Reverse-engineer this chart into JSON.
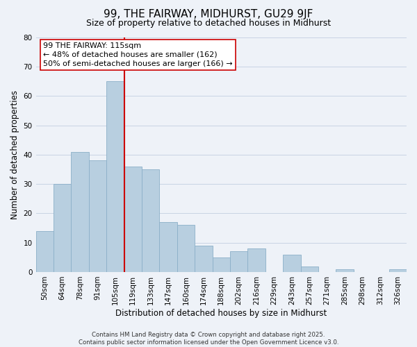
{
  "title": "99, THE FAIRWAY, MIDHURST, GU29 9JF",
  "subtitle": "Size of property relative to detached houses in Midhurst",
  "xlabel": "Distribution of detached houses by size in Midhurst",
  "ylabel": "Number of detached properties",
  "categories": [
    "50sqm",
    "64sqm",
    "78sqm",
    "91sqm",
    "105sqm",
    "119sqm",
    "133sqm",
    "147sqm",
    "160sqm",
    "174sqm",
    "188sqm",
    "202sqm",
    "216sqm",
    "229sqm",
    "243sqm",
    "257sqm",
    "271sqm",
    "285sqm",
    "298sqm",
    "312sqm",
    "326sqm"
  ],
  "values": [
    14,
    30,
    41,
    38,
    65,
    36,
    35,
    17,
    16,
    9,
    5,
    7,
    8,
    0,
    6,
    2,
    0,
    1,
    0,
    0,
    1
  ],
  "bar_color": "#b8cfe0",
  "bar_edge_color": "#8bafc8",
  "highlight_line_color": "#cc0000",
  "highlight_line_after_index": 4,
  "ylim": [
    0,
    80
  ],
  "yticks": [
    0,
    10,
    20,
    30,
    40,
    50,
    60,
    70,
    80
  ],
  "annotation_title": "99 THE FAIRWAY: 115sqm",
  "annotation_line1": "← 48% of detached houses are smaller (162)",
  "annotation_line2": "50% of semi-detached houses are larger (166) →",
  "annotation_box_color": "#ffffff",
  "annotation_box_edge": "#cc0000",
  "grid_color": "#c8d4e4",
  "background_color": "#eef2f8",
  "footer_line1": "Contains HM Land Registry data © Crown copyright and database right 2025.",
  "footer_line2": "Contains public sector information licensed under the Open Government Licence v3.0.",
  "title_fontsize": 11,
  "subtitle_fontsize": 9,
  "axis_label_fontsize": 8.5,
  "tick_fontsize": 7.5,
  "annotation_fontsize": 8
}
